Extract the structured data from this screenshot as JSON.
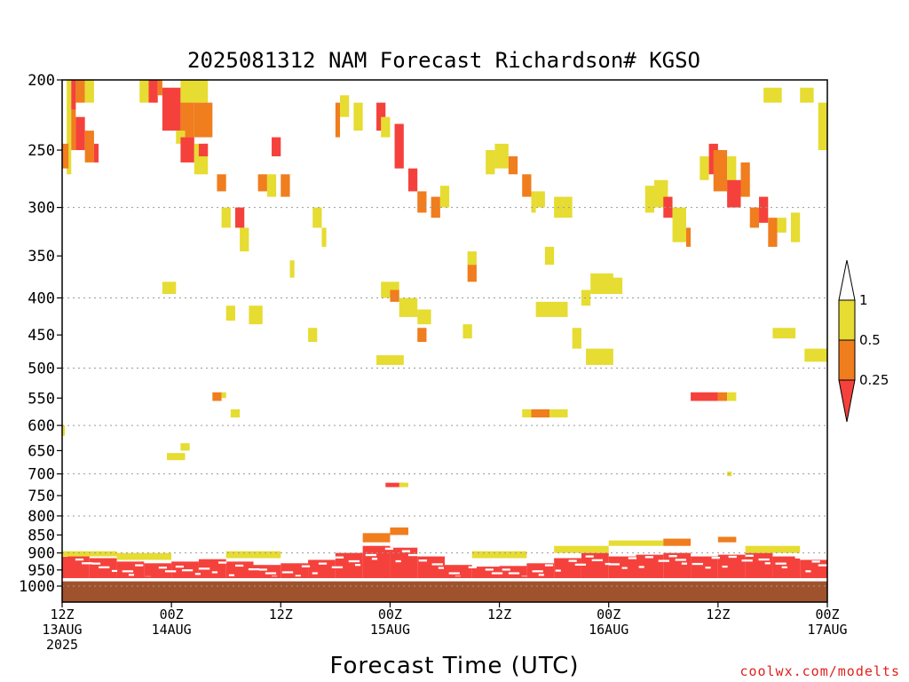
{
  "chart_data": {
    "type": "heatmap",
    "title": "2025081312 NAM Forecast Richardson# KGSO",
    "xlabel": "Forecast Time (UTC)",
    "credit": "coolwx.com/modelts",
    "xlim_hours": [
      0,
      84
    ],
    "y_axis_scale": "log-pressure",
    "ylim_hPa": [
      1000,
      200
    ],
    "y_ticks": [
      200,
      250,
      300,
      350,
      400,
      450,
      500,
      550,
      600,
      650,
      700,
      750,
      800,
      850,
      900,
      950,
      1000
    ],
    "grid_y_dotted": [
      300,
      400,
      500,
      600,
      700,
      800,
      900,
      1000
    ],
    "x_ticks": [
      {
        "hour": 0,
        "line1": "12Z",
        "line2": "13AUG",
        "line3": "2025"
      },
      {
        "hour": 12,
        "line1": "00Z",
        "line2": "14AUG",
        "line3": ""
      },
      {
        "hour": 24,
        "line1": "12Z",
        "line2": "",
        "line3": ""
      },
      {
        "hour": 36,
        "line1": "00Z",
        "line2": "15AUG",
        "line3": ""
      },
      {
        "hour": 48,
        "line1": "12Z",
        "line2": "",
        "line3": ""
      },
      {
        "hour": 60,
        "line1": "00Z",
        "line2": "16AUG",
        "line3": ""
      },
      {
        "hour": 72,
        "line1": "12Z",
        "line2": "",
        "line3": ""
      },
      {
        "hour": 84,
        "line1": "00Z",
        "line2": "17AUG",
        "line3": ""
      }
    ],
    "colorbar": {
      "labels": [
        "1",
        "0.5",
        "0.25"
      ],
      "colors": {
        "c1": "#e6dc32",
        "c2": "#f07d1e",
        "c3": "#f5413c",
        "above": "#ffffff",
        "below": "#f5413c"
      }
    },
    "ground_color": "#a0522d",
    "ground_top_hPa": 985,
    "categories_legend": {
      "1": "0.5 to 1",
      "2": "0.25 to 0.5",
      "3": "below 0.25"
    },
    "cells": [
      [
        0.5,
        1.0,
        200,
        270,
        1
      ],
      [
        1.0,
        1.5,
        200,
        220,
        3
      ],
      [
        1.0,
        1.5,
        220,
        250,
        2
      ],
      [
        1.5,
        2.5,
        200,
        215,
        2
      ],
      [
        2.5,
        3.5,
        200,
        215,
        1
      ],
      [
        1.5,
        2.5,
        225,
        250,
        3
      ],
      [
        2.5,
        3.5,
        235,
        260,
        2
      ],
      [
        3.5,
        4.0,
        245,
        260,
        3
      ],
      [
        0.0,
        0.7,
        245,
        265,
        2
      ],
      [
        8.5,
        9.5,
        200,
        215,
        1
      ],
      [
        9.5,
        10.5,
        200,
        215,
        3
      ],
      [
        10.5,
        11.0,
        200,
        210,
        2
      ],
      [
        11.0,
        13.0,
        205,
        235,
        3
      ],
      [
        13.0,
        14.5,
        210,
        240,
        2
      ],
      [
        13.0,
        16.0,
        200,
        215,
        1
      ],
      [
        14.5,
        16.5,
        215,
        240,
        2
      ],
      [
        12.5,
        13.5,
        235,
        245,
        1
      ],
      [
        13.0,
        14.5,
        240,
        260,
        3
      ],
      [
        14.5,
        16.0,
        245,
        270,
        1
      ],
      [
        15.0,
        16.0,
        245,
        255,
        3
      ],
      [
        17.0,
        18.0,
        270,
        285,
        2
      ],
      [
        17.5,
        18.5,
        300,
        320,
        1
      ],
      [
        19.0,
        20.0,
        300,
        320,
        3
      ],
      [
        19.5,
        20.5,
        320,
        345,
        1
      ],
      [
        21.5,
        22.5,
        270,
        285,
        2
      ],
      [
        22.5,
        23.5,
        270,
        290,
        1
      ],
      [
        23.0,
        24.0,
        240,
        255,
        3
      ],
      [
        24.0,
        25.0,
        270,
        290,
        2
      ],
      [
        25.0,
        25.5,
        355,
        375,
        1
      ],
      [
        27.5,
        28.5,
        300,
        320,
        1
      ],
      [
        28.5,
        29.0,
        320,
        340,
        1
      ],
      [
        30.0,
        30.5,
        215,
        240,
        2
      ],
      [
        30.5,
        31.5,
        210,
        225,
        1
      ],
      [
        32.0,
        33.0,
        215,
        235,
        1
      ],
      [
        34.5,
        35.5,
        215,
        235,
        3
      ],
      [
        35.0,
        36.0,
        225,
        240,
        1
      ],
      [
        36.5,
        37.5,
        230,
        265,
        3
      ],
      [
        38.0,
        39.0,
        265,
        285,
        3
      ],
      [
        39.0,
        40.0,
        285,
        305,
        2
      ],
      [
        40.5,
        41.5,
        290,
        310,
        2
      ],
      [
        41.5,
        42.5,
        280,
        300,
        1
      ],
      [
        44.5,
        45.5,
        345,
        360,
        1
      ],
      [
        44.5,
        45.5,
        360,
        380,
        2
      ],
      [
        46.5,
        47.5,
        250,
        270,
        1
      ],
      [
        47.5,
        49.0,
        245,
        265,
        1
      ],
      [
        49.0,
        50.0,
        255,
        270,
        2
      ],
      [
        50.5,
        51.5,
        270,
        290,
        2
      ],
      [
        51.5,
        52.0,
        285,
        305,
        1
      ],
      [
        52.0,
        53.0,
        285,
        300,
        1
      ],
      [
        53.0,
        54.0,
        340,
        360,
        1
      ],
      [
        54.0,
        55.0,
        290,
        310,
        1
      ],
      [
        55.0,
        56.0,
        290,
        310,
        1
      ],
      [
        56.0,
        57.0,
        440,
        470,
        1
      ],
      [
        57.0,
        58.0,
        390,
        410,
        1
      ],
      [
        58.0,
        59.5,
        370,
        395,
        1
      ],
      [
        59.5,
        60.5,
        370,
        380,
        1
      ],
      [
        64.0,
        65.0,
        280,
        305,
        1
      ],
      [
        65.0,
        66.5,
        275,
        300,
        1
      ],
      [
        66.0,
        67.0,
        290,
        310,
        3
      ],
      [
        67.0,
        68.5,
        300,
        335,
        1
      ],
      [
        68.5,
        69.0,
        320,
        340,
        2
      ],
      [
        70.0,
        71.0,
        255,
        275,
        1
      ],
      [
        71.0,
        72.0,
        245,
        270,
        3
      ],
      [
        71.5,
        73.0,
        250,
        285,
        2
      ],
      [
        73.0,
        74.0,
        255,
        280,
        1
      ],
      [
        73.0,
        74.5,
        275,
        300,
        3
      ],
      [
        74.5,
        75.5,
        260,
        290,
        2
      ],
      [
        75.5,
        76.5,
        300,
        320,
        2
      ],
      [
        76.5,
        77.5,
        290,
        315,
        3
      ],
      [
        77.5,
        78.5,
        310,
        340,
        2
      ],
      [
        78.5,
        79.5,
        310,
        325,
        1
      ],
      [
        80.0,
        81.0,
        305,
        335,
        1
      ],
      [
        83.0,
        84.0,
        215,
        250,
        1
      ],
      [
        77.0,
        79.0,
        205,
        215,
        1
      ],
      [
        81.0,
        82.5,
        205,
        215,
        1
      ],
      [
        11.0,
        12.5,
        380,
        395,
        1
      ],
      [
        18.0,
        19.0,
        410,
        430,
        1
      ],
      [
        20.5,
        22.0,
        410,
        435,
        1
      ],
      [
        27.0,
        28.0,
        440,
        460,
        1
      ],
      [
        35.0,
        37.0,
        380,
        400,
        1
      ],
      [
        36.0,
        37.0,
        390,
        405,
        2
      ],
      [
        37.0,
        39.0,
        400,
        425,
        1
      ],
      [
        39.0,
        40.5,
        415,
        435,
        1
      ],
      [
        39.0,
        40.0,
        440,
        460,
        2
      ],
      [
        44.0,
        45.0,
        435,
        455,
        1
      ],
      [
        52.0,
        55.5,
        405,
        425,
        1
      ],
      [
        59.0,
        61.5,
        375,
        395,
        1
      ],
      [
        78.0,
        80.5,
        440,
        455,
        1
      ],
      [
        81.5,
        84.0,
        470,
        490,
        1
      ],
      [
        34.5,
        37.5,
        480,
        495,
        1
      ],
      [
        57.5,
        60.5,
        470,
        495,
        1
      ],
      [
        16.5,
        17.5,
        540,
        555,
        2
      ],
      [
        17.5,
        18.0,
        540,
        550,
        1
      ],
      [
        18.5,
        19.5,
        570,
        585,
        1
      ],
      [
        50.5,
        51.5,
        570,
        585,
        1
      ],
      [
        51.5,
        53.5,
        570,
        585,
        2
      ],
      [
        53.5,
        55.5,
        570,
        585,
        1
      ],
      [
        69.0,
        72.0,
        540,
        555,
        3
      ],
      [
        72.0,
        73.0,
        540,
        555,
        2
      ],
      [
        73.0,
        74.0,
        540,
        555,
        1
      ],
      [
        0.0,
        0.3,
        600,
        620,
        1
      ],
      [
        11.5,
        13.5,
        655,
        670,
        1
      ],
      [
        13.0,
        14.0,
        635,
        650,
        1
      ],
      [
        35.5,
        37.5,
        720,
        730,
        3
      ],
      [
        37.0,
        38.0,
        720,
        730,
        1
      ],
      [
        73.0,
        73.5,
        695,
        705,
        1
      ]
    ],
    "surface_band_red_hPa": [
      [
        0,
        3,
        905,
        975
      ],
      [
        3,
        6,
        915,
        975
      ],
      [
        6,
        9,
        925,
        975
      ],
      [
        9,
        12,
        930,
        975
      ],
      [
        12,
        15,
        925,
        975
      ],
      [
        15,
        18,
        918,
        975
      ],
      [
        18,
        21,
        925,
        975
      ],
      [
        21,
        24,
        935,
        975
      ],
      [
        24,
        27,
        930,
        975
      ],
      [
        27,
        30,
        920,
        975
      ],
      [
        30,
        33,
        900,
        975
      ],
      [
        33,
        36,
        880,
        975
      ],
      [
        36,
        39,
        885,
        975
      ],
      [
        39,
        42,
        910,
        975
      ],
      [
        42,
        45,
        935,
        975
      ],
      [
        45,
        48,
        940,
        975
      ],
      [
        48,
        51,
        938,
        975
      ],
      [
        51,
        54,
        930,
        975
      ],
      [
        54,
        57,
        915,
        975
      ],
      [
        57,
        60,
        900,
        975
      ],
      [
        60,
        63,
        910,
        975
      ],
      [
        63,
        66,
        905,
        975
      ],
      [
        66,
        69,
        900,
        975
      ],
      [
        69,
        72,
        910,
        975
      ],
      [
        72,
        75,
        905,
        975
      ],
      [
        75,
        78,
        900,
        975
      ],
      [
        78,
        81,
        910,
        975
      ],
      [
        81,
        84,
        920,
        975
      ]
    ],
    "surface_band_orange_hPa": [
      [
        33,
        36,
        845,
        870
      ],
      [
        36,
        38,
        830,
        850
      ],
      [
        66,
        69,
        860,
        880
      ],
      [
        72,
        74,
        855,
        870
      ]
    ],
    "surface_band_yellow_hPa": [
      [
        0,
        6,
        895,
        910
      ],
      [
        6,
        12,
        900,
        920
      ],
      [
        18,
        24,
        895,
        915
      ],
      [
        45,
        51,
        895,
        915
      ],
      [
        54,
        60,
        880,
        900
      ],
      [
        60,
        66,
        865,
        880
      ],
      [
        75,
        81,
        880,
        900
      ]
    ]
  }
}
